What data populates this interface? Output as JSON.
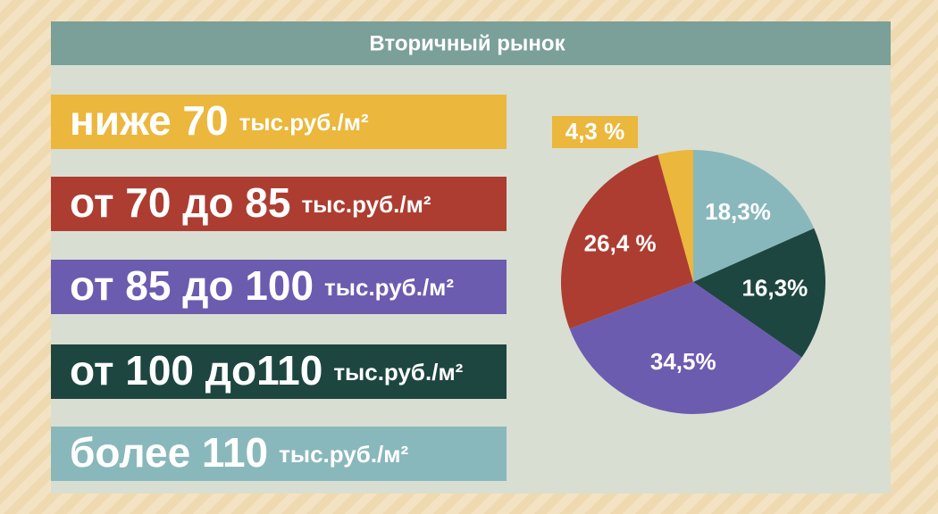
{
  "chart_data": {
    "type": "pie",
    "title": "Вторичный рынок",
    "categories": [
      "ниже 70",
      "от 70 до 85",
      "от 85 до 100",
      "от 100 до110",
      "более 110"
    ],
    "unit": "тыс.руб./м²",
    "values": [
      4.3,
      26.4,
      34.5,
      16.3,
      18.3
    ],
    "value_labels": [
      "4,3 %",
      "26,4 %",
      "34,5%",
      "16,3%",
      "18,3%"
    ],
    "colors": [
      "#ebb73c",
      "#ad3d31",
      "#6b5cb0",
      "#1d4640",
      "#89b8bc"
    ]
  }
}
